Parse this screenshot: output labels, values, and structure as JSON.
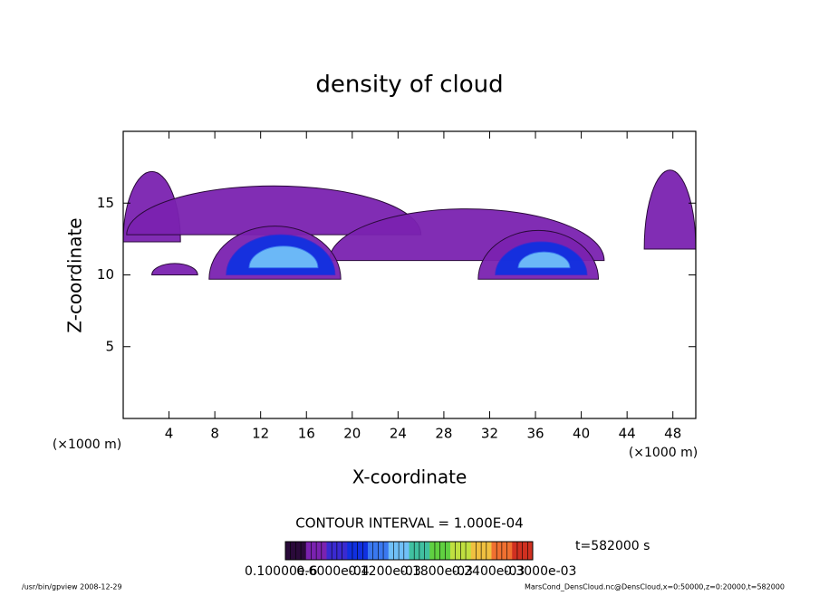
{
  "chart_data": {
    "type": "contour",
    "title": "density of cloud",
    "xlabel": "X-coordinate",
    "ylabel": "Z-coordinate",
    "xunit": "(×1000 m)",
    "yunit": "(×1000 m)",
    "xlim": [
      0,
      50
    ],
    "ylim": [
      0,
      20
    ],
    "xticks": [
      4,
      8,
      12,
      16,
      20,
      24,
      28,
      32,
      36,
      40,
      44,
      48
    ],
    "yticks": [
      5,
      10,
      15
    ],
    "contour_interval": "CONTOUR INTERVAL = 1.000E-04",
    "time": "t=582000 s",
    "colors": [
      "#2a0a3a",
      "#7a22b0",
      "#3a2ad0",
      "#1030e0",
      "#3a78f0",
      "#70c0f8",
      "#40c0a0",
      "#60d040",
      "#c0e040",
      "#f0c040",
      "#f07030",
      "#d03020"
    ],
    "regions": [
      {
        "x": [
          0,
          5
        ],
        "z": [
          12.3,
          17.2
        ],
        "level": 1
      },
      {
        "x": [
          0.3,
          26
        ],
        "z": [
          12.8,
          16.2
        ],
        "level": 1
      },
      {
        "x": [
          18,
          42
        ],
        "z": [
          11,
          14.6
        ],
        "level": 1
      },
      {
        "x": [
          45.5,
          50
        ],
        "z": [
          11.8,
          17.3
        ],
        "level": 1
      },
      {
        "x": [
          2.5,
          6.5
        ],
        "z": [
          10,
          10.8
        ],
        "level": 1
      },
      {
        "x": [
          7.5,
          19
        ],
        "z": [
          9.7,
          13.4
        ],
        "level": 1
      },
      {
        "x": [
          9,
          18.5
        ],
        "z": [
          10,
          12.8
        ],
        "level": 3
      },
      {
        "x": [
          11,
          17
        ],
        "z": [
          10.5,
          12
        ],
        "level": 5
      },
      {
        "x": [
          31,
          41.5
        ],
        "z": [
          9.7,
          13.1
        ],
        "level": 1
      },
      {
        "x": [
          32.5,
          40.5
        ],
        "z": [
          10,
          12.3
        ],
        "level": 3
      },
      {
        "x": [
          34.5,
          39
        ],
        "z": [
          10.5,
          11.6
        ],
        "level": 5
      }
    ],
    "colorbar_labels": [
      "0.10000e-6",
      "0.6000e-04",
      "0.1200e-03",
      "0.1800e-03",
      "0.2400e-03",
      "0.3000e-03"
    ],
    "footer_left": "/usr/bin/gpview   2008-12-29",
    "footer_right": "MarsCond_DensCloud.nc@DensCloud,x=0:50000,z=0:20000,t=582000"
  }
}
